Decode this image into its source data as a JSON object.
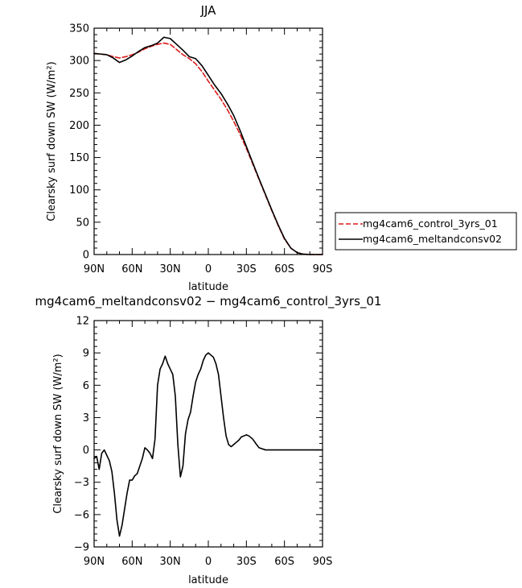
{
  "chart_data": [
    {
      "type": "line",
      "title": "JJA",
      "xlabel": "latitude",
      "ylabel": "Clearsky surf down SW (W/m²)",
      "xlim": [
        90,
        -90
      ],
      "ylim": [
        0,
        350
      ],
      "xticks": [
        90,
        60,
        30,
        0,
        -30,
        -60,
        -90
      ],
      "xtick_labels": [
        "90N",
        "60N",
        "30N",
        "0",
        "30S",
        "60S",
        "90S"
      ],
      "yticks": [
        0,
        50,
        100,
        150,
        200,
        250,
        300,
        350
      ],
      "ytick_labels": [
        "0",
        "50",
        "100",
        "150",
        "200",
        "250",
        "300",
        "350"
      ],
      "legend_position": "right",
      "series": [
        {
          "name": "mg4cam6_control_3yrs_01",
          "color": "#dd1c1c",
          "dash": "dashed",
          "x": [
            90,
            85,
            80,
            75,
            70,
            65,
            60,
            55,
            50,
            45,
            40,
            35,
            30,
            25,
            20,
            15,
            10,
            5,
            0,
            -5,
            -10,
            -15,
            -20,
            -25,
            -30,
            -35,
            -40,
            -45,
            -50,
            -55,
            -60,
            -65,
            -70,
            -75,
            -80,
            -85,
            -90
          ],
          "y": [
            311,
            310,
            309,
            306,
            304,
            306,
            309,
            313,
            318,
            322,
            325,
            327,
            325,
            317,
            309,
            303,
            295,
            283,
            268,
            254,
            240,
            224,
            206,
            186,
            164,
            140,
            116,
            92,
            68,
            45,
            24,
            10,
            3,
            0.5,
            0,
            0,
            0
          ]
        },
        {
          "name": "mg4cam6_meltandconsv02",
          "color": "#000000",
          "dash": "solid",
          "x": [
            90,
            85,
            80,
            75,
            70,
            65,
            60,
            55,
            50,
            45,
            40,
            35,
            30,
            25,
            20,
            15,
            10,
            5,
            0,
            -5,
            -10,
            -15,
            -20,
            -25,
            -30,
            -35,
            -40,
            -45,
            -50,
            -55,
            -60,
            -65,
            -70,
            -75,
            -80,
            -85,
            -90
          ],
          "y": [
            311,
            310,
            309,
            304,
            297,
            301,
            307,
            314,
            320,
            323,
            327,
            336,
            334,
            325,
            316,
            306,
            303,
            292,
            277,
            262,
            249,
            233,
            215,
            192,
            167,
            142,
            117,
            93,
            69,
            46,
            25,
            10,
            3,
            0.5,
            0,
            0,
            0
          ]
        }
      ]
    },
    {
      "type": "line",
      "title": "mg4cam6_meltandconsv02 − mg4cam6_control_3yrs_01",
      "xlabel": "latitude",
      "ylabel": "Clearsky surf down SW (W/m²)",
      "xlim": [
        90,
        -90
      ],
      "ylim": [
        -9,
        12
      ],
      "xticks": [
        90,
        60,
        30,
        0,
        -30,
        -60,
        -90
      ],
      "xtick_labels": [
        "90N",
        "60N",
        "30N",
        "0",
        "30S",
        "60S",
        "90S"
      ],
      "yticks": [
        -9,
        -6,
        -3,
        0,
        3,
        6,
        9,
        12
      ],
      "ytick_labels": [
        "−9",
        "−6",
        "−3",
        "0",
        "3",
        "6",
        "9",
        "12"
      ],
      "series": [
        {
          "color": "#000000",
          "dash": "solid",
          "x": [
            90,
            88,
            86,
            84,
            82,
            80,
            78,
            76,
            74,
            72,
            70,
            68,
            66,
            64,
            62,
            60,
            58,
            56,
            54,
            52,
            50,
            48,
            46,
            44,
            42,
            40,
            38,
            36,
            34,
            32,
            30,
            28,
            26,
            24,
            22,
            20,
            18,
            16,
            14,
            12,
            10,
            8,
            6,
            4,
            2,
            0,
            -2,
            -4,
            -6,
            -8,
            -10,
            -12,
            -14,
            -16,
            -18,
            -20,
            -22,
            -24,
            -26,
            -28,
            -30,
            -32,
            -35,
            -38,
            -40,
            -45,
            -50,
            -55,
            -58,
            -60,
            -63,
            -65,
            -70,
            -75,
            -80,
            -85,
            -90
          ],
          "y": [
            -0.8,
            -0.6,
            -1.8,
            -0.3,
            0.0,
            -0.5,
            -1.0,
            -2.0,
            -4.0,
            -6.5,
            -8.0,
            -7.0,
            -5.5,
            -4.0,
            -2.8,
            -2.8,
            -2.4,
            -2.2,
            -1.5,
            -0.8,
            0.2,
            0.0,
            -0.3,
            -0.8,
            1.0,
            6.0,
            7.5,
            8.0,
            8.7,
            8.0,
            7.5,
            7.0,
            5.0,
            0.5,
            -2.5,
            -1.5,
            1.5,
            2.8,
            3.5,
            5.0,
            6.3,
            7.0,
            7.5,
            8.3,
            8.8,
            9.0,
            8.8,
            8.6,
            8.0,
            7.0,
            5.0,
            3.0,
            1.3,
            0.5,
            0.3,
            0.5,
            0.7,
            0.9,
            1.2,
            1.3,
            1.4,
            1.3,
            1.0,
            0.5,
            0.2,
            0.0,
            0.0,
            0.0,
            0.0,
            0.0,
            0.0,
            0.0,
            0.0,
            0.0,
            0.0,
            0.0,
            0.0
          ]
        }
      ]
    }
  ]
}
